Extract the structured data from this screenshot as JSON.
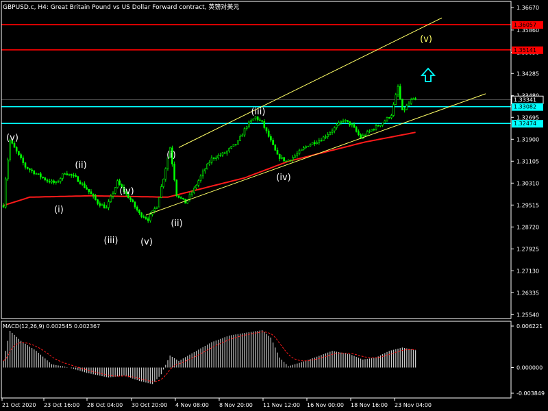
{
  "window": {
    "title": "GBPUSD.c, H4:  Great Britain Pound vs US Dollar Forward contract, 英镑对美元"
  },
  "colors": {
    "background": "#000000",
    "axis": "#ffffff",
    "candle": "#00ff00",
    "ma": "#ff1a1a",
    "channel": "#ffff66",
    "resistance": "#ff0000",
    "support": "#00ffff",
    "wave_label": "#ffffff",
    "arrow": "#00ffff",
    "macd_hist": "#c8c8c8",
    "macd_signal": "#ff1a1a"
  },
  "price_axis": {
    "ticks": [
      "1.36670",
      "1.35860",
      "1.35050",
      "1.34285",
      "1.33480",
      "1.32695",
      "1.31900",
      "1.31105",
      "1.30310",
      "1.29515",
      "1.28720",
      "1.27925",
      "1.27130",
      "1.26335",
      "1.25540"
    ],
    "markers": [
      {
        "label": "1.36057",
        "color": "#ff0000",
        "kind": "resistance"
      },
      {
        "label": "1.35141",
        "color": "#ff0000",
        "kind": "resistance"
      },
      {
        "label": "1.33341",
        "color": "#ffffff",
        "kind": "current"
      },
      {
        "label": "1.33082",
        "color": "#00ffff",
        "kind": "support"
      },
      {
        "label": "1.32474",
        "color": "#00ffff",
        "kind": "support"
      }
    ]
  },
  "time_axis": {
    "labels": [
      "21 Oct 2020",
      "23 Oct 16:00",
      "28 Oct 04:00",
      "30 Oct 20:00",
      "4 Nov 08:00",
      "8 Nov 20:00",
      "11 Nov 12:00",
      "16 Nov 00:00",
      "18 Nov 16:00",
      "23 Nov 04:00"
    ]
  },
  "wave_labels": [
    "(v)",
    "(i)",
    "(ii)",
    "(iii)",
    "(iv)",
    "(v)",
    "(i)",
    "(ii)",
    "(iii)",
    "(iv)",
    "(v)"
  ],
  "macd": {
    "title": "MACD(12,26,9) 0.002545 0.002367",
    "ticks": [
      "0.006221",
      "0.000000",
      "-0.003849"
    ]
  },
  "chart_data": {
    "type": "candlestick",
    "symbol": "GBPUSD.c",
    "timeframe": "H4",
    "y_range": [
      1.254,
      1.368
    ],
    "anchors": [
      {
        "t": 0,
        "p": 1.295
      },
      {
        "t": 1,
        "p": 1.305
      },
      {
        "t": 3,
        "p": 1.3185
      },
      {
        "t": 10,
        "p": 1.309
      },
      {
        "t": 16,
        "p": 1.306
      },
      {
        "t": 20,
        "p": 1.304
      },
      {
        "t": 24,
        "p": 1.303
      },
      {
        "t": 28,
        "p": 1.307
      },
      {
        "t": 33,
        "p": 1.305
      },
      {
        "t": 38,
        "p": 1.301
      },
      {
        "t": 43,
        "p": 1.296
      },
      {
        "t": 47,
        "p": 1.294
      },
      {
        "t": 52,
        "p": 1.3035
      },
      {
        "t": 58,
        "p": 1.297
      },
      {
        "t": 62,
        "p": 1.292
      },
      {
        "t": 66,
        "p": 1.29
      },
      {
        "t": 70,
        "p": 1.295
      },
      {
        "t": 73,
        "p": 1.305
      },
      {
        "t": 76,
        "p": 1.316
      },
      {
        "t": 79,
        "p": 1.299
      },
      {
        "t": 83,
        "p": 1.296
      },
      {
        "t": 87,
        "p": 1.301
      },
      {
        "t": 91,
        "p": 1.307
      },
      {
        "t": 95,
        "p": 1.312
      },
      {
        "t": 101,
        "p": 1.314
      },
      {
        "t": 107,
        "p": 1.318
      },
      {
        "t": 111,
        "p": 1.324
      },
      {
        "t": 115,
        "p": 1.327
      },
      {
        "t": 118,
        "p": 1.325
      },
      {
        "t": 121,
        "p": 1.32
      },
      {
        "t": 125,
        "p": 1.313
      },
      {
        "t": 129,
        "p": 1.311
      },
      {
        "t": 133,
        "p": 1.313
      },
      {
        "t": 139,
        "p": 1.317
      },
      {
        "t": 145,
        "p": 1.319
      },
      {
        "t": 151,
        "p": 1.323
      },
      {
        "t": 155,
        "p": 1.326
      },
      {
        "t": 159,
        "p": 1.324
      },
      {
        "t": 163,
        "p": 1.3195
      },
      {
        "t": 168,
        "p": 1.3225
      },
      {
        "t": 173,
        "p": 1.325
      },
      {
        "t": 177,
        "p": 1.328
      },
      {
        "t": 180,
        "p": 1.338
      },
      {
        "t": 182,
        "p": 1.329
      },
      {
        "t": 186,
        "p": 1.333
      },
      {
        "t": 188,
        "p": 1.3335
      }
    ],
    "ma_anchors": [
      {
        "t": 0,
        "p": 1.295
      },
      {
        "t": 12,
        "p": 1.298
      },
      {
        "t": 40,
        "p": 1.2985
      },
      {
        "t": 75,
        "p": 1.298
      },
      {
        "t": 90,
        "p": 1.301
      },
      {
        "t": 110,
        "p": 1.305
      },
      {
        "t": 130,
        "p": 1.311
      },
      {
        "t": 150,
        "p": 1.315
      },
      {
        "t": 165,
        "p": 1.318
      },
      {
        "t": 188,
        "p": 1.3215
      }
    ],
    "channel_upper": [
      {
        "t": 80,
        "p": 1.316
      },
      {
        "t": 200,
        "p": 1.363
      }
    ],
    "channel_lower": [
      {
        "t": 65,
        "p": 1.2915
      },
      {
        "t": 220,
        "p": 1.3355
      }
    ],
    "levels": [
      1.36057,
      1.35141,
      1.33082,
      1.32474
    ],
    "macd_anchors": [
      {
        "t": 0,
        "h": 0.001
      },
      {
        "t": 3,
        "h": 0.0055
      },
      {
        "t": 8,
        "h": 0.004
      },
      {
        "t": 15,
        "h": 0.0025
      },
      {
        "t": 22,
        "h": 0.0005
      },
      {
        "t": 30,
        "h": 0.0
      },
      {
        "t": 38,
        "h": -0.0008
      },
      {
        "t": 48,
        "h": -0.0015
      },
      {
        "t": 55,
        "h": -0.0012
      },
      {
        "t": 62,
        "h": -0.002
      },
      {
        "t": 68,
        "h": -0.0025
      },
      {
        "t": 72,
        "h": -0.001
      },
      {
        "t": 76,
        "h": 0.0018
      },
      {
        "t": 80,
        "h": 0.001
      },
      {
        "t": 88,
        "h": 0.0025
      },
      {
        "t": 95,
        "h": 0.0038
      },
      {
        "t": 103,
        "h": 0.0048
      },
      {
        "t": 112,
        "h": 0.0053
      },
      {
        "t": 118,
        "h": 0.0056
      },
      {
        "t": 122,
        "h": 0.0045
      },
      {
        "t": 126,
        "h": 0.0015
      },
      {
        "t": 130,
        "h": 0.0002
      },
      {
        "t": 136,
        "h": 0.0008
      },
      {
        "t": 142,
        "h": 0.0015
      },
      {
        "t": 150,
        "h": 0.0025
      },
      {
        "t": 158,
        "h": 0.002
      },
      {
        "t": 164,
        "h": 0.0012
      },
      {
        "t": 170,
        "h": 0.0015
      },
      {
        "t": 176,
        "h": 0.0025
      },
      {
        "t": 182,
        "h": 0.003
      },
      {
        "t": 188,
        "h": 0.0026
      }
    ],
    "macd_range": [
      -0.003849,
      0.006221
    ]
  }
}
